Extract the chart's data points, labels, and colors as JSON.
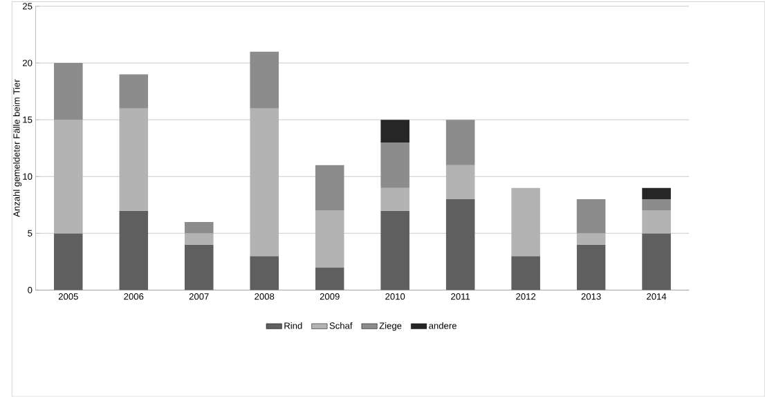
{
  "chart_data": {
    "type": "bar",
    "stacked": true,
    "ylabel": "Anzahl gemeldeter  Fälle beim Tier",
    "categories": [
      "2005",
      "2006",
      "2007",
      "2008",
      "2009",
      "2010",
      "2011",
      "2012",
      "2013",
      "2014"
    ],
    "series": [
      {
        "name": "Rind",
        "color": "#5f5f5f",
        "values": [
          5,
          7,
          4,
          3,
          2,
          7,
          8,
          3,
          4,
          5
        ]
      },
      {
        "name": "Schaf",
        "color": "#b3b3b3",
        "values": [
          10,
          9,
          1,
          13,
          5,
          2,
          3,
          6,
          1,
          2
        ]
      },
      {
        "name": "Ziege",
        "color": "#8c8c8c",
        "values": [
          5,
          3,
          1,
          5,
          4,
          4,
          4,
          null,
          3,
          1
        ]
      },
      {
        "name": "andere",
        "color": "#262626",
        "values": [
          null,
          null,
          null,
          null,
          null,
          2,
          null,
          null,
          null,
          1
        ]
      }
    ],
    "ylim": [
      0,
      25
    ],
    "yticks": [
      0,
      5,
      10,
      15,
      20,
      25
    ],
    "grid": "y",
    "legend": "bottom"
  }
}
